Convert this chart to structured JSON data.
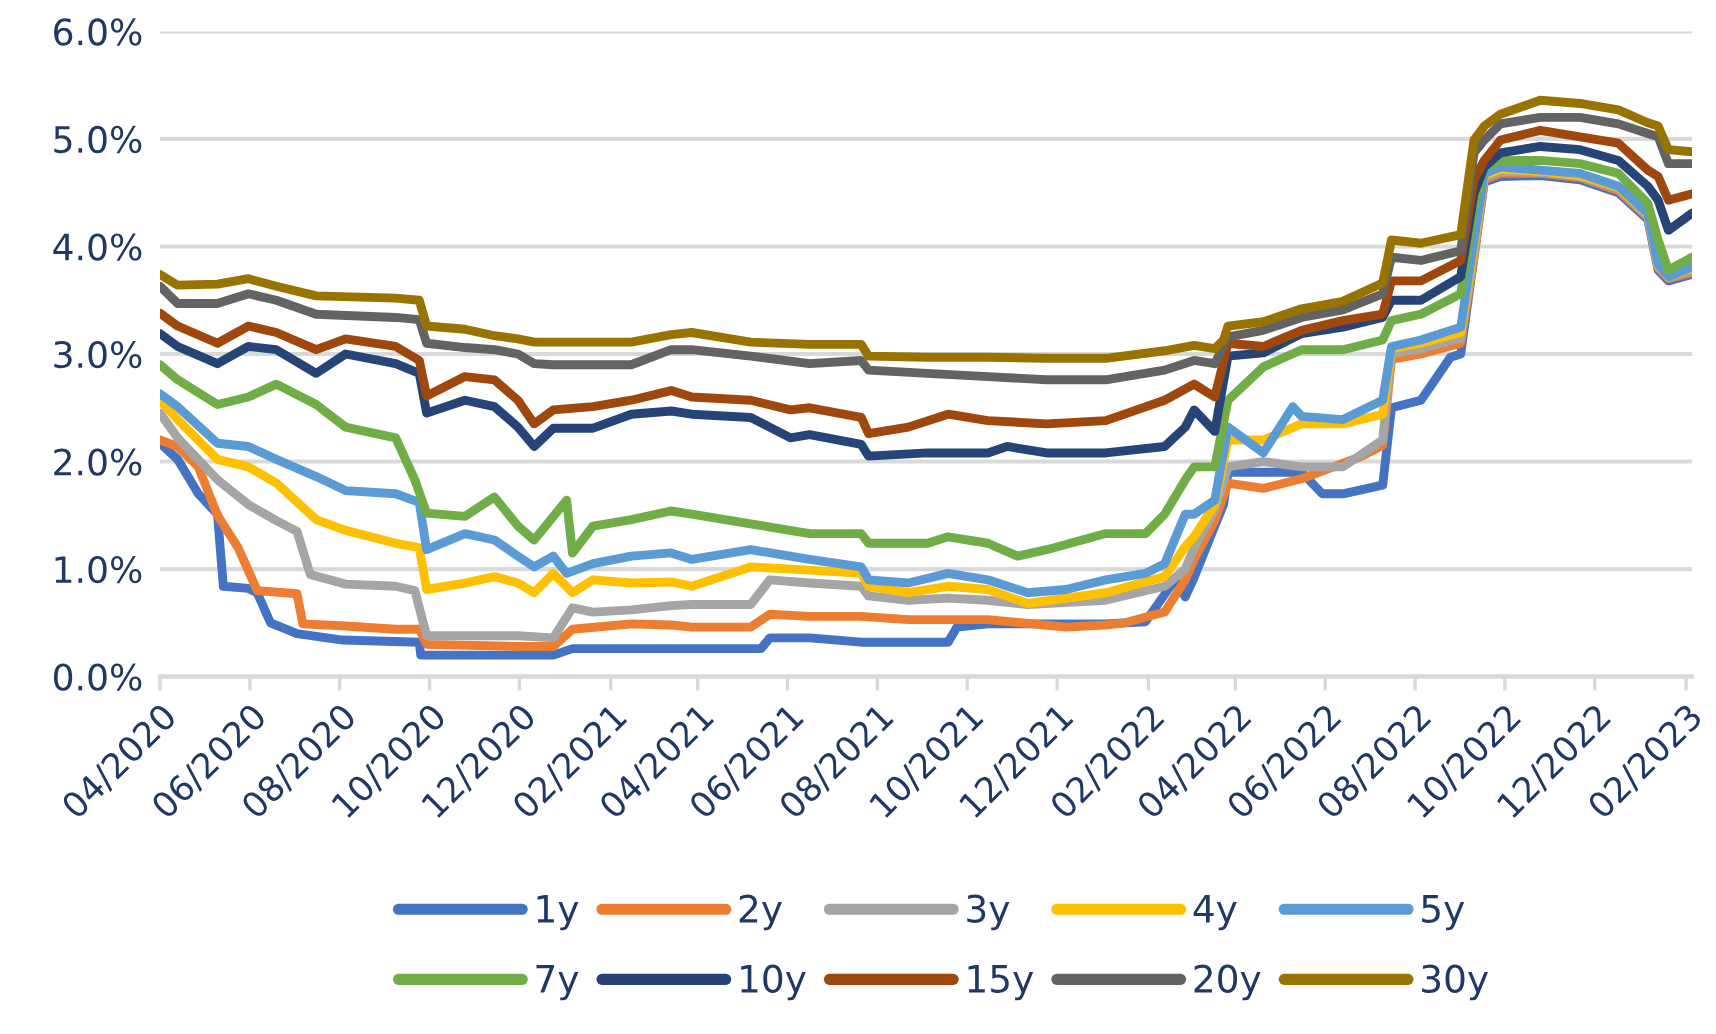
{
  "chart_data": {
    "type": "line",
    "grid": "y",
    "legend": "bottom",
    "marker": "none",
    "line_style": "solid",
    "xlim": [
      "2020-04-01",
      "2023-02-05"
    ],
    "xticks": [
      {
        "value": "2020-04-01",
        "label": "04/2020"
      },
      {
        "value": "2020-06-01",
        "label": "06/2020"
      },
      {
        "value": "2020-08-01",
        "label": "08/2020"
      },
      {
        "value": "2020-10-01",
        "label": "10/2020"
      },
      {
        "value": "2020-12-01",
        "label": "12/2020"
      },
      {
        "value": "2021-02-01",
        "label": "02/2021"
      },
      {
        "value": "2021-04-01",
        "label": "04/2021"
      },
      {
        "value": "2021-06-01",
        "label": "06/2021"
      },
      {
        "value": "2021-08-01",
        "label": "08/2021"
      },
      {
        "value": "2021-10-01",
        "label": "10/2021"
      },
      {
        "value": "2021-12-01",
        "label": "12/2021"
      },
      {
        "value": "2022-02-01",
        "label": "02/2022"
      },
      {
        "value": "2022-04-01",
        "label": "04/2022"
      },
      {
        "value": "2022-06-01",
        "label": "06/2022"
      },
      {
        "value": "2022-08-01",
        "label": "08/2022"
      },
      {
        "value": "2022-10-01",
        "label": "10/2022"
      },
      {
        "value": "2022-12-01",
        "label": "12/2022"
      },
      {
        "value": "2023-02-01",
        "label": "02/2023"
      }
    ],
    "ylim": [
      0,
      6
    ],
    "yticks": [
      {
        "value": 0,
        "label": "0.0%"
      },
      {
        "value": 1,
        "label": "1.0%"
      },
      {
        "value": 2,
        "label": "2.0%"
      },
      {
        "value": 3,
        "label": "3.0%"
      },
      {
        "value": 4,
        "label": "4.0%"
      },
      {
        "value": 5,
        "label": "5.0%"
      },
      {
        "value": 6,
        "label": "6.0%"
      }
    ],
    "series": [
      {
        "name": "1y",
        "color": "#4472c4",
        "x": [
          "2020-04-01",
          "2020-04-13",
          "2020-04-27",
          "2020-05-10",
          "2020-05-14",
          "2020-05-31",
          "2020-06-06",
          "2020-06-15",
          "2020-07-03",
          "2020-08-03",
          "2020-09-24",
          "2020-09-25",
          "2020-12-24",
          "2021-01-06",
          "2021-03-14",
          "2021-05-14",
          "2021-05-20",
          "2021-06-16",
          "2021-07-21",
          "2021-09-18",
          "2021-09-24",
          "2021-10-15",
          "2022-01-03",
          "2022-01-30",
          "2022-02-19",
          "2022-02-26",
          "2022-03-04",
          "2022-03-18",
          "2022-03-24",
          "2022-03-27",
          "2022-04-20",
          "2022-05-16",
          "2022-05-30",
          "2022-06-13",
          "2022-07-10",
          "2022-07-16",
          "2022-08-05",
          "2022-08-25",
          "2022-09-01",
          "2022-09-10",
          "2022-09-17",
          "2022-09-28",
          "2022-10-25",
          "2022-11-21",
          "2022-12-17",
          "2023-01-06",
          "2023-01-13",
          "2023-01-20",
          "2023-02-05"
        ],
        "values": [
          2.17,
          2.02,
          1.7,
          1.51,
          0.84,
          0.82,
          0.78,
          0.5,
          0.4,
          0.34,
          0.32,
          0.2,
          0.2,
          0.26,
          0.26,
          0.26,
          0.36,
          0.36,
          0.32,
          0.32,
          0.46,
          0.49,
          0.49,
          0.51,
          0.9,
          0.74,
          0.92,
          1.4,
          1.6,
          1.9,
          1.9,
          1.9,
          1.7,
          1.7,
          1.78,
          2.5,
          2.57,
          2.97,
          3.0,
          3.9,
          4.6,
          4.65,
          4.66,
          4.62,
          4.5,
          4.25,
          3.78,
          3.68,
          3.74
        ]
      },
      {
        "name": "2y",
        "color": "#ed7d31",
        "x": [
          "2020-04-01",
          "2020-04-13",
          "2020-04-27",
          "2020-05-10",
          "2020-05-24",
          "2020-06-06",
          "2020-07-03",
          "2020-07-07",
          "2020-08-05",
          "2020-09-08",
          "2020-09-24",
          "2020-09-29",
          "2020-11-30",
          "2020-12-24",
          "2021-01-06",
          "2021-02-15",
          "2021-03-14",
          "2021-03-28",
          "2021-05-07",
          "2021-05-20",
          "2021-06-16",
          "2021-07-21",
          "2021-08-22",
          "2021-10-15",
          "2021-12-07",
          "2022-01-03",
          "2022-01-16",
          "2022-02-12",
          "2022-02-26",
          "2022-03-04",
          "2022-03-18",
          "2022-03-27",
          "2022-04-20",
          "2022-05-16",
          "2022-06-26",
          "2022-07-10",
          "2022-07-16",
          "2022-08-05",
          "2022-09-01",
          "2022-09-10",
          "2022-09-17",
          "2022-09-28",
          "2022-10-25",
          "2022-11-21",
          "2022-12-17",
          "2023-01-06",
          "2023-01-13",
          "2023-01-20",
          "2023-02-05"
        ],
        "values": [
          2.2,
          2.14,
          1.95,
          1.5,
          1.2,
          0.8,
          0.77,
          0.49,
          0.47,
          0.44,
          0.44,
          0.3,
          0.28,
          0.28,
          0.44,
          0.49,
          0.48,
          0.46,
          0.46,
          0.58,
          0.56,
          0.56,
          0.53,
          0.53,
          0.46,
          0.48,
          0.5,
          0.6,
          0.9,
          1.09,
          1.45,
          1.8,
          1.75,
          1.84,
          2.05,
          2.15,
          2.95,
          3.0,
          3.1,
          3.9,
          4.62,
          4.68,
          4.68,
          4.64,
          4.52,
          4.27,
          3.8,
          3.7,
          3.76
        ]
      },
      {
        "name": "3y",
        "color": "#a5a5a5",
        "x": [
          "2020-04-01",
          "2020-04-13",
          "2020-05-10",
          "2020-05-31",
          "2020-06-19",
          "2020-07-03",
          "2020-07-12",
          "2020-08-05",
          "2020-09-08",
          "2020-09-21",
          "2020-09-29",
          "2020-10-25",
          "2020-11-30",
          "2020-12-24",
          "2021-01-06",
          "2021-01-20",
          "2021-02-15",
          "2021-03-14",
          "2021-03-28",
          "2021-05-07",
          "2021-05-20",
          "2021-06-16",
          "2021-07-21",
          "2021-07-26",
          "2021-08-22",
          "2021-09-18",
          "2021-10-15",
          "2021-11-11",
          "2022-01-03",
          "2022-02-12",
          "2022-02-26",
          "2022-03-04",
          "2022-03-18",
          "2022-03-27",
          "2022-04-20",
          "2022-05-16",
          "2022-06-13",
          "2022-07-10",
          "2022-07-16",
          "2022-08-05",
          "2022-09-01",
          "2022-09-10",
          "2022-09-17",
          "2022-09-28",
          "2022-10-25",
          "2022-11-21",
          "2022-12-17",
          "2023-01-06",
          "2023-01-13",
          "2023-01-20",
          "2023-02-05"
        ],
        "values": [
          2.45,
          2.22,
          1.83,
          1.6,
          1.45,
          1.35,
          0.95,
          0.86,
          0.84,
          0.8,
          0.38,
          0.38,
          0.38,
          0.36,
          0.64,
          0.6,
          0.62,
          0.66,
          0.67,
          0.67,
          0.9,
          0.87,
          0.84,
          0.75,
          0.71,
          0.73,
          0.71,
          0.67,
          0.71,
          0.84,
          1.0,
          1.2,
          1.55,
          1.95,
          2.0,
          1.95,
          1.95,
          2.2,
          3.0,
          3.05,
          3.15,
          3.95,
          4.64,
          4.7,
          4.69,
          4.65,
          4.54,
          4.28,
          3.82,
          3.71,
          3.78
        ]
      },
      {
        "name": "4y",
        "color": "#ffc000",
        "x": [
          "2020-04-01",
          "2020-04-13",
          "2020-05-10",
          "2020-05-31",
          "2020-06-19",
          "2020-07-16",
          "2020-08-05",
          "2020-09-08",
          "2020-09-24",
          "2020-09-29",
          "2020-10-25",
          "2020-11-14",
          "2020-11-30",
          "2020-12-11",
          "2020-12-24",
          "2021-01-06",
          "2021-01-20",
          "2021-02-15",
          "2021-03-14",
          "2021-03-28",
          "2021-05-07",
          "2021-06-16",
          "2021-07-21",
          "2021-07-26",
          "2021-08-22",
          "2021-09-18",
          "2021-10-15",
          "2021-11-11",
          "2022-01-03",
          "2022-02-12",
          "2022-02-26",
          "2022-03-04",
          "2022-03-18",
          "2022-03-27",
          "2022-04-20",
          "2022-05-16",
          "2022-06-13",
          "2022-07-10",
          "2022-07-16",
          "2022-08-05",
          "2022-09-01",
          "2022-09-10",
          "2022-09-17",
          "2022-09-28",
          "2022-10-25",
          "2022-11-21",
          "2022-12-17",
          "2023-01-06",
          "2023-01-13",
          "2023-01-20",
          "2023-02-05"
        ],
        "values": [
          2.57,
          2.39,
          2.02,
          1.95,
          1.8,
          1.46,
          1.36,
          1.24,
          1.2,
          0.81,
          0.87,
          0.93,
          0.87,
          0.78,
          0.96,
          0.78,
          0.9,
          0.87,
          0.88,
          0.84,
          1.02,
          0.99,
          0.96,
          0.84,
          0.78,
          0.84,
          0.81,
          0.68,
          0.78,
          0.93,
          1.21,
          1.3,
          1.6,
          2.2,
          2.2,
          2.35,
          2.35,
          2.44,
          3.05,
          3.1,
          3.2,
          4.0,
          4.66,
          4.72,
          4.7,
          4.66,
          4.55,
          4.3,
          3.83,
          3.72,
          3.8
        ]
      },
      {
        "name": "5y",
        "color": "#5b9bd5",
        "x": [
          "2020-04-01",
          "2020-04-13",
          "2020-05-10",
          "2020-05-31",
          "2020-06-19",
          "2020-07-16",
          "2020-08-05",
          "2020-09-08",
          "2020-09-24",
          "2020-09-29",
          "2020-10-25",
          "2020-11-14",
          "2020-11-30",
          "2020-12-11",
          "2020-12-24",
          "2021-01-02",
          "2021-01-20",
          "2021-02-15",
          "2021-03-14",
          "2021-03-28",
          "2021-05-07",
          "2021-06-16",
          "2021-07-21",
          "2021-07-26",
          "2021-08-22",
          "2021-09-18",
          "2021-10-15",
          "2021-11-11",
          "2021-12-07",
          "2022-01-03",
          "2022-01-30",
          "2022-02-12",
          "2022-02-26",
          "2022-03-04",
          "2022-03-18",
          "2022-03-27",
          "2022-04-20",
          "2022-05-10",
          "2022-05-16",
          "2022-06-13",
          "2022-07-10",
          "2022-07-16",
          "2022-08-05",
          "2022-09-01",
          "2022-09-10",
          "2022-09-17",
          "2022-09-28",
          "2022-10-25",
          "2022-11-21",
          "2022-12-17",
          "2023-01-06",
          "2023-01-13",
          "2023-01-20",
          "2023-02-05"
        ],
        "values": [
          2.63,
          2.51,
          2.17,
          2.14,
          2.02,
          1.86,
          1.73,
          1.7,
          1.62,
          1.18,
          1.33,
          1.27,
          1.12,
          1.02,
          1.12,
          0.96,
          1.05,
          1.12,
          1.15,
          1.09,
          1.18,
          1.09,
          1.02,
          0.9,
          0.87,
          0.96,
          0.9,
          0.78,
          0.81,
          0.9,
          0.96,
          1.05,
          1.51,
          1.51,
          1.64,
          2.32,
          2.08,
          2.51,
          2.42,
          2.39,
          2.57,
          3.07,
          3.13,
          3.25,
          4.06,
          4.68,
          4.74,
          4.71,
          4.68,
          4.56,
          4.31,
          3.84,
          3.72,
          3.81
        ]
      },
      {
        "name": "7y",
        "color": "#70ad47",
        "x": [
          "2020-04-01",
          "2020-04-13",
          "2020-05-10",
          "2020-05-31",
          "2020-06-19",
          "2020-07-16",
          "2020-08-05",
          "2020-09-08",
          "2020-09-21",
          "2020-09-29",
          "2020-10-25",
          "2020-11-14",
          "2020-11-30",
          "2020-12-11",
          "2021-01-02",
          "2021-01-06",
          "2021-01-20",
          "2021-02-15",
          "2021-03-14",
          "2021-03-28",
          "2021-05-07",
          "2021-06-16",
          "2021-07-21",
          "2021-07-26",
          "2021-09-04",
          "2021-09-18",
          "2021-10-15",
          "2021-11-04",
          "2021-11-24",
          "2022-01-03",
          "2022-01-30",
          "2022-02-12",
          "2022-02-26",
          "2022-03-04",
          "2022-03-18",
          "2022-03-27",
          "2022-04-20",
          "2022-05-16",
          "2022-06-13",
          "2022-07-10",
          "2022-07-16",
          "2022-08-05",
          "2022-09-01",
          "2022-09-10",
          "2022-09-17",
          "2022-09-28",
          "2022-10-25",
          "2022-11-21",
          "2022-12-17",
          "2023-01-06",
          "2023-01-13",
          "2023-01-20",
          "2023-02-05"
        ],
        "values": [
          2.9,
          2.76,
          2.53,
          2.6,
          2.72,
          2.53,
          2.32,
          2.22,
          1.83,
          1.52,
          1.49,
          1.67,
          1.4,
          1.27,
          1.64,
          1.15,
          1.4,
          1.46,
          1.54,
          1.51,
          1.42,
          1.33,
          1.33,
          1.24,
          1.24,
          1.3,
          1.24,
          1.12,
          1.18,
          1.33,
          1.33,
          1.51,
          1.83,
          1.95,
          1.95,
          2.57,
          2.88,
          3.04,
          3.04,
          3.13,
          3.31,
          3.37,
          3.56,
          4.37,
          4.74,
          4.8,
          4.8,
          4.77,
          4.68,
          4.4,
          4.06,
          3.78,
          3.9
        ]
      },
      {
        "name": "10y",
        "color": "#264478",
        "x": [
          "2020-04-01",
          "2020-04-13",
          "2020-05-10",
          "2020-05-31",
          "2020-06-19",
          "2020-07-16",
          "2020-08-05",
          "2020-09-08",
          "2020-09-24",
          "2020-09-29",
          "2020-10-25",
          "2020-11-14",
          "2020-11-30",
          "2020-12-11",
          "2020-12-24",
          "2021-01-20",
          "2021-02-15",
          "2021-03-14",
          "2021-03-28",
          "2021-05-07",
          "2021-06-03",
          "2021-06-16",
          "2021-07-21",
          "2021-07-26",
          "2021-09-04",
          "2021-10-15",
          "2021-10-28",
          "2021-11-24",
          "2022-01-03",
          "2022-02-12",
          "2022-02-26",
          "2022-03-04",
          "2022-03-18",
          "2022-03-27",
          "2022-04-20",
          "2022-05-16",
          "2022-06-13",
          "2022-07-10",
          "2022-07-16",
          "2022-08-05",
          "2022-09-01",
          "2022-09-10",
          "2022-09-17",
          "2022-09-28",
          "2022-10-25",
          "2022-11-21",
          "2022-12-17",
          "2023-01-06",
          "2023-01-13",
          "2023-01-20",
          "2023-02-05"
        ],
        "values": [
          3.19,
          3.07,
          2.91,
          3.07,
          3.04,
          2.82,
          3.0,
          2.91,
          2.82,
          2.45,
          2.57,
          2.51,
          2.32,
          2.14,
          2.31,
          2.31,
          2.44,
          2.47,
          2.44,
          2.41,
          2.22,
          2.25,
          2.16,
          2.05,
          2.08,
          2.08,
          2.14,
          2.08,
          2.08,
          2.14,
          2.32,
          2.48,
          2.28,
          2.98,
          3.01,
          3.19,
          3.25,
          3.34,
          3.5,
          3.5,
          3.72,
          4.49,
          4.74,
          4.87,
          4.93,
          4.9,
          4.8,
          4.56,
          4.43,
          4.15,
          4.31
        ]
      },
      {
        "name": "15y",
        "color": "#9e480e",
        "x": [
          "2020-04-01",
          "2020-04-13",
          "2020-05-10",
          "2020-05-31",
          "2020-06-19",
          "2020-07-16",
          "2020-08-05",
          "2020-09-08",
          "2020-09-24",
          "2020-09-29",
          "2020-10-25",
          "2020-11-14",
          "2020-11-30",
          "2020-12-11",
          "2020-12-24",
          "2021-01-20",
          "2021-02-15",
          "2021-03-14",
          "2021-03-28",
          "2021-05-07",
          "2021-06-03",
          "2021-06-16",
          "2021-07-21",
          "2021-07-26",
          "2021-08-22",
          "2021-09-18",
          "2021-10-15",
          "2021-11-24",
          "2022-01-03",
          "2022-02-12",
          "2022-03-04",
          "2022-03-18",
          "2022-03-27",
          "2022-04-20",
          "2022-05-16",
          "2022-06-13",
          "2022-07-10",
          "2022-07-16",
          "2022-08-05",
          "2022-09-01",
          "2022-09-10",
          "2022-09-17",
          "2022-09-28",
          "2022-10-25",
          "2022-11-21",
          "2022-12-17",
          "2023-01-06",
          "2023-01-13",
          "2023-01-20",
          "2023-02-05"
        ],
        "values": [
          3.38,
          3.26,
          3.1,
          3.26,
          3.2,
          3.04,
          3.14,
          3.07,
          2.94,
          2.61,
          2.79,
          2.76,
          2.57,
          2.35,
          2.48,
          2.51,
          2.57,
          2.66,
          2.6,
          2.57,
          2.48,
          2.5,
          2.41,
          2.26,
          2.32,
          2.44,
          2.38,
          2.35,
          2.38,
          2.57,
          2.72,
          2.6,
          3.1,
          3.07,
          3.22,
          3.31,
          3.37,
          3.68,
          3.68,
          3.87,
          4.62,
          4.8,
          4.99,
          5.08,
          5.02,
          4.96,
          4.71,
          4.65,
          4.43,
          4.49
        ]
      },
      {
        "name": "20y",
        "color": "#636363",
        "x": [
          "2020-04-01",
          "2020-04-13",
          "2020-05-10",
          "2020-05-31",
          "2020-06-19",
          "2020-07-16",
          "2020-09-08",
          "2020-09-24",
          "2020-09-29",
          "2020-10-25",
          "2020-11-14",
          "2020-11-30",
          "2020-12-11",
          "2020-12-24",
          "2021-02-15",
          "2021-03-14",
          "2021-03-28",
          "2021-05-07",
          "2021-06-16",
          "2021-07-21",
          "2021-07-26",
          "2021-09-04",
          "2021-10-15",
          "2021-11-24",
          "2022-01-03",
          "2022-02-12",
          "2022-03-04",
          "2022-03-18",
          "2022-03-27",
          "2022-04-20",
          "2022-05-16",
          "2022-06-13",
          "2022-07-10",
          "2022-07-16",
          "2022-08-05",
          "2022-09-01",
          "2022-09-10",
          "2022-09-17",
          "2022-09-28",
          "2022-10-25",
          "2022-11-21",
          "2022-12-17",
          "2023-01-06",
          "2023-01-13",
          "2023-01-20",
          "2023-02-05"
        ],
        "values": [
          3.63,
          3.47,
          3.47,
          3.56,
          3.5,
          3.37,
          3.34,
          3.32,
          3.1,
          3.06,
          3.04,
          3.0,
          2.91,
          2.9,
          2.9,
          3.04,
          3.04,
          2.98,
          2.91,
          2.94,
          2.85,
          2.82,
          2.79,
          2.76,
          2.76,
          2.85,
          2.94,
          2.91,
          3.16,
          3.22,
          3.34,
          3.41,
          3.56,
          3.9,
          3.87,
          3.96,
          4.87,
          4.99,
          5.14,
          5.2,
          5.2,
          5.14,
          5.05,
          5.02,
          4.77,
          4.77
        ]
      },
      {
        "name": "30y",
        "color": "#997300",
        "x": [
          "2020-04-01",
          "2020-04-13",
          "2020-05-10",
          "2020-05-31",
          "2020-06-19",
          "2020-07-16",
          "2020-09-08",
          "2020-09-24",
          "2020-09-29",
          "2020-10-25",
          "2020-11-14",
          "2020-11-30",
          "2020-12-11",
          "2021-02-15",
          "2021-03-14",
          "2021-03-28",
          "2021-05-07",
          "2021-06-16",
          "2021-07-21",
          "2021-07-26",
          "2021-09-04",
          "2021-10-15",
          "2021-11-24",
          "2022-01-03",
          "2022-02-12",
          "2022-03-04",
          "2022-03-18",
          "2022-03-24",
          "2022-03-27",
          "2022-04-20",
          "2022-05-16",
          "2022-06-13",
          "2022-07-10",
          "2022-07-16",
          "2022-08-05",
          "2022-09-01",
          "2022-09-10",
          "2022-09-17",
          "2022-09-28",
          "2022-10-25",
          "2022-11-21",
          "2022-12-17",
          "2023-01-06",
          "2023-01-13",
          "2023-01-20",
          "2023-02-05"
        ],
        "values": [
          3.74,
          3.64,
          3.65,
          3.7,
          3.63,
          3.54,
          3.52,
          3.5,
          3.26,
          3.23,
          3.17,
          3.14,
          3.11,
          3.11,
          3.18,
          3.2,
          3.11,
          3.09,
          3.09,
          2.98,
          2.97,
          2.97,
          2.96,
          2.96,
          3.03,
          3.08,
          3.05,
          3.13,
          3.26,
          3.3,
          3.42,
          3.49,
          3.66,
          4.06,
          4.03,
          4.11,
          4.99,
          5.12,
          5.23,
          5.36,
          5.33,
          5.27,
          5.15,
          5.12,
          4.9,
          4.88
        ]
      }
    ]
  }
}
